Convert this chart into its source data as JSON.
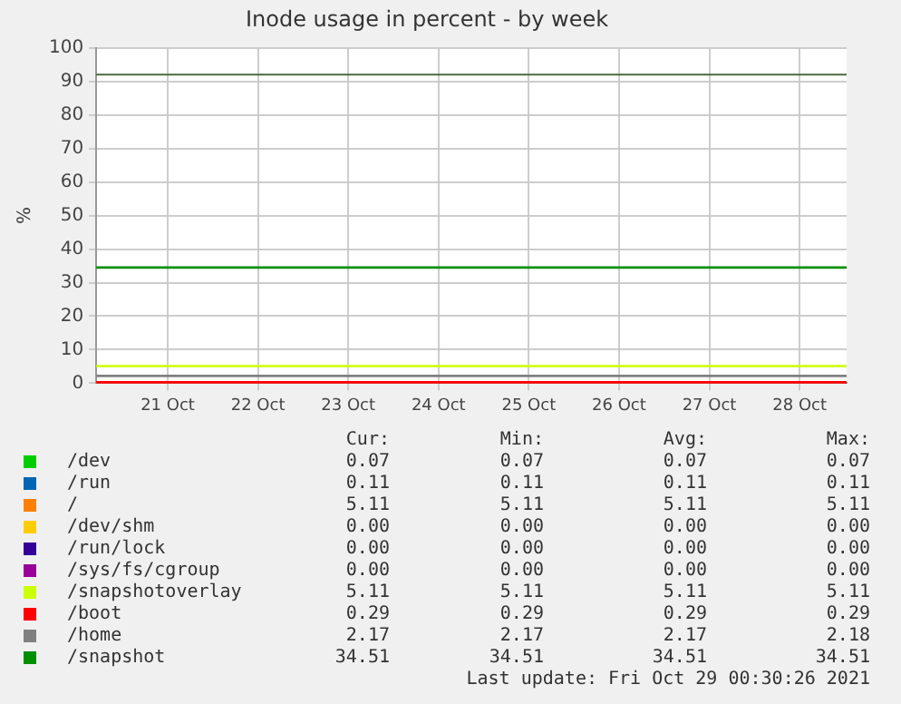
{
  "chart_data": {
    "type": "line",
    "title": "Inode usage in percent - by week",
    "ylabel": "%",
    "x": [
      "2021-10-20T17:00",
      "2021-10-29T00:30"
    ],
    "xlim": [
      "2021-10-20T17:00",
      "2021-10-29T00:30"
    ],
    "xticks": [
      {
        "value": "2021-10-21T12:00",
        "label": "21 Oct"
      },
      {
        "value": "2021-10-22T12:00",
        "label": "22 Oct"
      },
      {
        "value": "2021-10-23T12:00",
        "label": "23 Oct"
      },
      {
        "value": "2021-10-24T12:00",
        "label": "24 Oct"
      },
      {
        "value": "2021-10-25T12:00",
        "label": "25 Oct"
      },
      {
        "value": "2021-10-26T12:00",
        "label": "26 Oct"
      },
      {
        "value": "2021-10-27T12:00",
        "label": "27 Oct"
      },
      {
        "value": "2021-10-28T12:00",
        "label": "28 Oct"
      }
    ],
    "ylim": [
      0,
      100
    ],
    "yticks": [
      0,
      10,
      20,
      30,
      40,
      50,
      60,
      70,
      80,
      90,
      100
    ],
    "grid": true,
    "legend": "bottom",
    "marker": "none",
    "line_style": "solid",
    "ref_lines": [
      {
        "axis": "y",
        "value": 92,
        "color": "#4d6b3a"
      }
    ],
    "series": [
      {
        "name": "/dev",
        "color": "#00cc00",
        "values": [
          null,
          null
        ]
      },
      {
        "name": "/run",
        "color": "#0066b3",
        "values": [
          null,
          null
        ]
      },
      {
        "name": "/",
        "color": "#ff8000",
        "values": [
          null,
          null
        ]
      },
      {
        "name": "/dev/shm",
        "color": "#ffcc00",
        "values": [
          null,
          null
        ]
      },
      {
        "name": "/run/lock",
        "color": "#330099",
        "values": [
          null,
          null
        ]
      },
      {
        "name": "/sys/fs/cgroup",
        "color": "#990099",
        "values": [
          null,
          null
        ]
      },
      {
        "name": "/snapshotoverlay",
        "color": "#ccff00",
        "values": [
          5.11,
          5.11
        ]
      },
      {
        "name": "/boot",
        "color": "#ff0000",
        "values": [
          0.29,
          0.29
        ]
      },
      {
        "name": "/home",
        "color": "#808080",
        "values": [
          2.17,
          2.17
        ]
      },
      {
        "name": "/snapshot",
        "color": "#008f00",
        "values": [
          34.51,
          34.51
        ]
      }
    ],
    "annotations": [
      "Cur:",
      "Min:",
      "Avg:",
      "Max:",
      "0.07",
      "0.07",
      "0.07",
      "0.07",
      "0.11",
      "0.11",
      "0.11",
      "0.11",
      "5.11",
      "5.11",
      "5.11",
      "5.11",
      "0.00",
      "0.00",
      "0.00",
      "0.00",
      "0.00",
      "0.00",
      "0.00",
      "0.00",
      "0.00",
      "0.00",
      "0.00",
      "0.00",
      "5.11",
      "5.11",
      "5.11",
      "5.11",
      "0.29",
      "0.29",
      "0.29",
      "0.29",
      "2.17",
      "2.17",
      "2.17",
      "2.18",
      "34.51",
      "34.51",
      "34.51",
      "34.51",
      "Last update: Fri Oct 29 00:30:26 2021"
    ]
  }
}
